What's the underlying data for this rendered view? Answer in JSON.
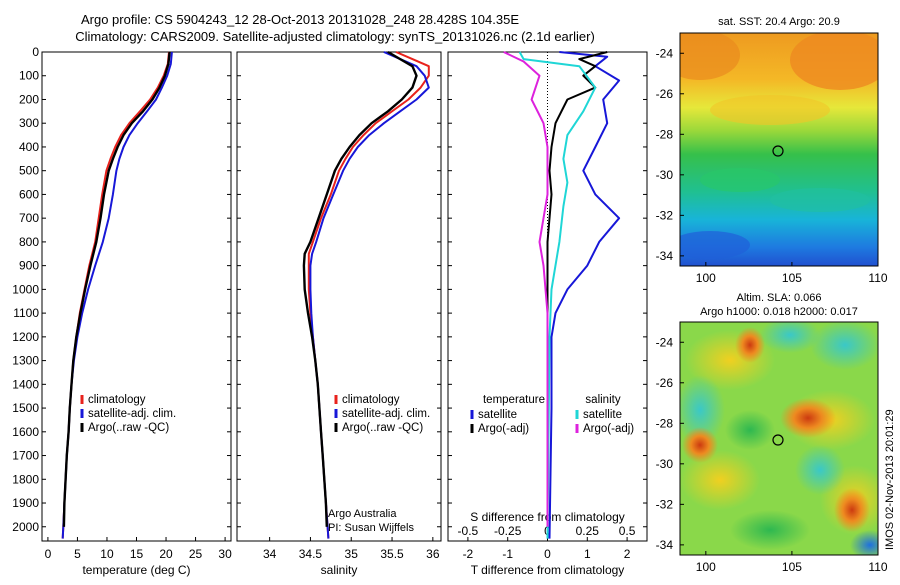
{
  "header": {
    "line1": "Argo profile: CS 5904243_12 28-Oct-2013 20131028_248 28.428S 104.35E",
    "line2": "Climatology: CARS2009. Satellite-adjusted climatology: synTS_20131026.nc (2.1d earlier)"
  },
  "y_ticks": [
    0,
    100,
    200,
    300,
    400,
    500,
    600,
    700,
    800,
    900,
    1000,
    1100,
    1200,
    1300,
    1400,
    1500,
    1600,
    1700,
    1800,
    1900,
    2000
  ],
  "chart_data": [
    {
      "id": "temperature",
      "type": "line",
      "xlabel": "temperature (deg C)",
      "xlim": [
        -1,
        31
      ],
      "xticks": [
        0,
        5,
        10,
        15,
        20,
        25,
        30
      ],
      "ylim": [
        2060,
        0
      ],
      "legend": [
        "climatology",
        "satellite-adj. clim.",
        "Argo(..raw -QC)"
      ],
      "series": [
        {
          "name": "climatology",
          "color": "#e8221c",
          "points": [
            [
              20.5,
              0
            ],
            [
              20.3,
              50
            ],
            [
              19.6,
              100
            ],
            [
              18.6,
              150
            ],
            [
              17.3,
              200
            ],
            [
              15.6,
              250
            ],
            [
              13.8,
              300
            ],
            [
              12.4,
              350
            ],
            [
              11.4,
              400
            ],
            [
              10.6,
              450
            ],
            [
              9.9,
              500
            ],
            [
              9.2,
              600
            ],
            [
              8.6,
              700
            ],
            [
              8.0,
              800
            ],
            [
              7.0,
              900
            ],
            [
              6.2,
              1000
            ],
            [
              5.4,
              1100
            ],
            [
              4.8,
              1200
            ],
            [
              4.3,
              1300
            ],
            [
              4.0,
              1400
            ],
            [
              3.7,
              1500
            ],
            [
              3.5,
              1600
            ],
            [
              3.2,
              1700
            ],
            [
              3.0,
              1800
            ],
            [
              2.8,
              1900
            ],
            [
              2.6,
              2000
            ],
            [
              2.5,
              2050
            ]
          ]
        },
        {
          "name": "satellite-adj. clim.",
          "color": "#1717d8",
          "points": [
            [
              21.0,
              0
            ],
            [
              20.8,
              50
            ],
            [
              20.2,
              100
            ],
            [
              19.3,
              150
            ],
            [
              18.3,
              200
            ],
            [
              16.8,
              250
            ],
            [
              15.2,
              300
            ],
            [
              13.8,
              350
            ],
            [
              12.8,
              400
            ],
            [
              12.1,
              450
            ],
            [
              11.6,
              500
            ],
            [
              11.0,
              600
            ],
            [
              10.3,
              700
            ],
            [
              9.3,
              800
            ],
            [
              8.0,
              900
            ],
            [
              6.8,
              1000
            ],
            [
              5.8,
              1100
            ],
            [
              5.0,
              1200
            ],
            [
              4.4,
              1300
            ],
            [
              4.0,
              1400
            ],
            [
              3.7,
              1500
            ],
            [
              3.5,
              1600
            ],
            [
              3.2,
              1700
            ],
            [
              3.0,
              1800
            ],
            [
              2.8,
              1900
            ],
            [
              2.6,
              2000
            ],
            [
              2.5,
              2050
            ]
          ]
        },
        {
          "name": "Argo(..raw -QC)",
          "color": "#000000",
          "points": [
            [
              20.6,
              0
            ],
            [
              20.4,
              50
            ],
            [
              19.8,
              100
            ],
            [
              18.9,
              150
            ],
            [
              17.7,
              200
            ],
            [
              16.1,
              250
            ],
            [
              14.2,
              300
            ],
            [
              12.8,
              350
            ],
            [
              11.8,
              400
            ],
            [
              11.0,
              450
            ],
            [
              10.3,
              500
            ],
            [
              9.5,
              600
            ],
            [
              8.9,
              700
            ],
            [
              8.2,
              800
            ],
            [
              7.2,
              900
            ],
            [
              6.3,
              1000
            ],
            [
              5.5,
              1100
            ],
            [
              4.8,
              1200
            ],
            [
              4.3,
              1300
            ],
            [
              4.0,
              1400
            ],
            [
              3.7,
              1500
            ],
            [
              3.5,
              1600
            ],
            [
              3.2,
              1700
            ],
            [
              3.0,
              1800
            ],
            [
              2.8,
              1900
            ],
            [
              2.7,
              2000
            ]
          ]
        }
      ]
    },
    {
      "id": "salinity",
      "type": "line",
      "xlabel": "salinity",
      "xlim": [
        33.6,
        36.1
      ],
      "xticks": [
        34,
        34.5,
        35,
        35.5,
        36
      ],
      "ylim": [
        2060,
        0
      ],
      "legend": [
        "climatology",
        "satellite-adj. clim.",
        "Argo(..raw -QC)"
      ],
      "annotation": [
        "Argo Australia",
        "PI: Susan Wijffels"
      ],
      "series": [
        {
          "name": "climatology",
          "color": "#e8221c",
          "points": [
            [
              35.55,
              0
            ],
            [
              35.75,
              30
            ],
            [
              35.95,
              60
            ],
            [
              35.95,
              100
            ],
            [
              35.85,
              150
            ],
            [
              35.7,
              200
            ],
            [
              35.5,
              250
            ],
            [
              35.3,
              300
            ],
            [
              35.15,
              350
            ],
            [
              35.02,
              400
            ],
            [
              34.93,
              450
            ],
            [
              34.85,
              500
            ],
            [
              34.75,
              600
            ],
            [
              34.63,
              700
            ],
            [
              34.53,
              800
            ],
            [
              34.48,
              850
            ],
            [
              34.48,
              900
            ],
            [
              34.48,
              1000
            ],
            [
              34.5,
              1100
            ],
            [
              34.53,
              1200
            ],
            [
              34.56,
              1300
            ],
            [
              34.59,
              1400
            ],
            [
              34.61,
              1500
            ],
            [
              34.63,
              1600
            ],
            [
              34.65,
              1700
            ],
            [
              34.67,
              1800
            ],
            [
              34.69,
              1900
            ],
            [
              34.71,
              2000
            ],
            [
              34.72,
              2050
            ]
          ]
        },
        {
          "name": "satellite-adj. clim.",
          "color": "#1717d8",
          "points": [
            [
              35.4,
              0
            ],
            [
              35.6,
              30
            ],
            [
              35.8,
              60
            ],
            [
              35.9,
              100
            ],
            [
              35.95,
              150
            ],
            [
              35.8,
              200
            ],
            [
              35.6,
              250
            ],
            [
              35.4,
              300
            ],
            [
              35.22,
              350
            ],
            [
              35.08,
              400
            ],
            [
              34.98,
              450
            ],
            [
              34.9,
              500
            ],
            [
              34.78,
              600
            ],
            [
              34.66,
              700
            ],
            [
              34.57,
              800
            ],
            [
              34.52,
              850
            ],
            [
              34.5,
              900
            ],
            [
              34.5,
              1000
            ],
            [
              34.51,
              1100
            ],
            [
              34.53,
              1200
            ],
            [
              34.56,
              1300
            ],
            [
              34.59,
              1400
            ],
            [
              34.61,
              1500
            ],
            [
              34.63,
              1600
            ],
            [
              34.65,
              1700
            ],
            [
              34.67,
              1800
            ],
            [
              34.69,
              1900
            ],
            [
              34.71,
              2000
            ],
            [
              34.72,
              2050
            ]
          ]
        },
        {
          "name": "Argo(..raw -QC)",
          "color": "#000000",
          "points": [
            [
              35.45,
              0
            ],
            [
              35.6,
              30
            ],
            [
              35.75,
              60
            ],
            [
              35.8,
              100
            ],
            [
              35.75,
              150
            ],
            [
              35.62,
              200
            ],
            [
              35.45,
              250
            ],
            [
              35.25,
              300
            ],
            [
              35.1,
              350
            ],
            [
              34.98,
              400
            ],
            [
              34.88,
              450
            ],
            [
              34.8,
              500
            ],
            [
              34.7,
              600
            ],
            [
              34.6,
              700
            ],
            [
              34.5,
              800
            ],
            [
              34.43,
              850
            ],
            [
              34.42,
              900
            ],
            [
              34.43,
              1000
            ],
            [
              34.47,
              1100
            ],
            [
              34.52,
              1200
            ],
            [
              34.56,
              1300
            ],
            [
              34.59,
              1400
            ],
            [
              34.61,
              1500
            ],
            [
              34.63,
              1600
            ],
            [
              34.65,
              1700
            ],
            [
              34.67,
              1800
            ],
            [
              34.69,
              1900
            ],
            [
              34.7,
              2000
            ]
          ]
        }
      ]
    },
    {
      "id": "difference",
      "type": "line",
      "xlabel": "T difference from climatology",
      "top_xlabel": "S difference from climatology",
      "xlim": [
        -2.5,
        2.5
      ],
      "xticks": [
        -2,
        -1,
        0,
        1,
        2
      ],
      "top_xticks": [
        "-0.5",
        "-0.25",
        "0",
        "0.25",
        "0.5"
      ],
      "top_xtick_values": [
        -2,
        -1,
        0,
        1,
        2
      ],
      "ylim": [
        2060,
        0
      ],
      "legend_titles": [
        "temperature",
        "salinity"
      ],
      "legend": [
        "satellite",
        "Argo(-adj)",
        "satellite",
        "Argo(-adj)"
      ],
      "series": [
        {
          "name": "satellite",
          "color": "#1717d8",
          "points": [
            [
              0.3,
              0
            ],
            [
              1.5,
              20
            ],
            [
              1.2,
              60
            ],
            [
              1.8,
              120
            ],
            [
              1.4,
              200
            ],
            [
              1.5,
              300
            ],
            [
              1.2,
              400
            ],
            [
              0.9,
              500
            ],
            [
              1.2,
              600
            ],
            [
              1.8,
              700
            ],
            [
              1.3,
              800
            ],
            [
              1.0,
              900
            ],
            [
              0.5,
              1000
            ],
            [
              0.2,
              1100
            ],
            [
              0.1,
              1200
            ],
            [
              0.1,
              1500
            ],
            [
              0.05,
              2050
            ]
          ]
        },
        {
          "name": "Argo(-adj)",
          "color": "#000000",
          "points": [
            [
              1.5,
              0
            ],
            [
              0.8,
              30
            ],
            [
              1.2,
              60
            ],
            [
              0.9,
              100
            ],
            [
              1.2,
              150
            ],
            [
              0.5,
              200
            ],
            [
              0.2,
              300
            ],
            [
              0.1,
              400
            ],
            [
              0.05,
              500
            ],
            [
              0.1,
              600
            ],
            [
              0.05,
              700
            ],
            [
              0.0,
              800
            ],
            [
              0.0,
              1000
            ],
            [
              0.0,
              2000
            ]
          ]
        },
        {
          "name": "satellite",
          "color": "#1fd6d6",
          "points": [
            [
              -0.7,
              0
            ],
            [
              -0.6,
              30
            ],
            [
              0.8,
              60
            ],
            [
              1.2,
              150
            ],
            [
              0.9,
              250
            ],
            [
              0.5,
              350
            ],
            [
              0.4,
              450
            ],
            [
              0.5,
              550
            ],
            [
              0.4,
              650
            ],
            [
              0.3,
              800
            ],
            [
              0.1,
              1000
            ],
            [
              0.05,
              1200
            ],
            [
              0.0,
              2050
            ]
          ]
        },
        {
          "name": "Argo(-adj)",
          "color": "#dd22dd",
          "points": [
            [
              -1.1,
              0
            ],
            [
              -0.6,
              40
            ],
            [
              -0.2,
              100
            ],
            [
              -0.4,
              200
            ],
            [
              -0.1,
              300
            ],
            [
              0.0,
              400
            ],
            [
              0.0,
              500
            ],
            [
              0.0,
              600
            ],
            [
              -0.1,
              700
            ],
            [
              -0.2,
              800
            ],
            [
              -0.1,
              900
            ],
            [
              0.0,
              1100
            ],
            [
              0.0,
              2000
            ]
          ]
        }
      ]
    }
  ],
  "maps": {
    "sst": {
      "title": "sat. SST: 20.4  Argo: 20.9",
      "yticks": [
        -24,
        -26,
        -28,
        -30,
        -32,
        -34
      ],
      "xticks": [
        100,
        105,
        110
      ]
    },
    "sla": {
      "title_line1": "Altim. SLA: 0.066",
      "title_line2": "Argo h1000: 0.018 h2000: 0.017",
      "yticks": [
        -24,
        -26,
        -28,
        -30,
        -32,
        -34
      ],
      "xticks": [
        100,
        105,
        110
      ]
    }
  },
  "footer": {
    "timestamp": "IMOS 02-Nov-2013 20:01:29"
  },
  "colors": {
    "climatology": "#e8221c",
    "satellite": "#1717d8",
    "argo": "#000000",
    "sal_satellite": "#1fd6d6",
    "sal_argo": "#dd22dd"
  }
}
